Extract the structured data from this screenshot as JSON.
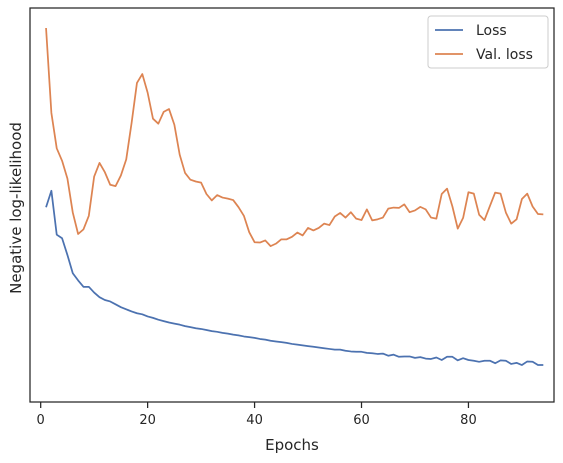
{
  "chart_data": {
    "type": "line",
    "xlabel": "Epochs",
    "ylabel": "Negative log-likelihood",
    "xlim": [
      -2,
      96
    ],
    "ylim": [
      0,
      100
    ],
    "x_ticks": [
      0,
      20,
      40,
      60,
      80
    ],
    "y_ticks_shown": false,
    "grid": false,
    "legend_placement": "top-right",
    "series": [
      {
        "name": "Loss",
        "color": "#4c72b0",
        "x": [
          1,
          2,
          3,
          4,
          5,
          6,
          7,
          8,
          9,
          10,
          11,
          12,
          13,
          14,
          15,
          16,
          17,
          18,
          19,
          20,
          21,
          22,
          23,
          24,
          25,
          26,
          27,
          28,
          29,
          30,
          31,
          32,
          33,
          34,
          35,
          36,
          37,
          38,
          39,
          40,
          41,
          42,
          43,
          44,
          45,
          46,
          47,
          48,
          49,
          50,
          51,
          52,
          53,
          54,
          55,
          56,
          57,
          58,
          59,
          60,
          61,
          62,
          63,
          64,
          65,
          66,
          67,
          68,
          69,
          70,
          71,
          72,
          73,
          74,
          75,
          76,
          77,
          78,
          79,
          80,
          81,
          82,
          83,
          84,
          85,
          86,
          87,
          88,
          89,
          90,
          91,
          92,
          93,
          94
        ],
        "y": [
          49.8,
          54.4,
          42.1,
          41.1,
          36.4,
          31.3,
          29.3,
          27.5,
          27.5,
          25.9,
          24.6,
          23.8,
          23.4,
          22.6,
          21.8,
          21.2,
          20.6,
          20.1,
          19.8,
          19.2,
          18.8,
          18.3,
          17.9,
          17.5,
          17.2,
          16.9,
          16.5,
          16.2,
          15.9,
          15.7,
          15.4,
          15.1,
          14.9,
          14.6,
          14.4,
          14.1,
          13.9,
          13.6,
          13.4,
          13.2,
          12.9,
          12.7,
          12.4,
          12.2,
          12.0,
          11.8,
          11.5,
          11.3,
          11.1,
          10.9,
          10.7,
          10.5,
          10.3,
          10.1,
          9.9,
          9.9,
          9.6,
          9.4,
          9.3,
          9.3,
          9.0,
          8.9,
          8.7,
          8.8,
          8.2,
          8.5,
          7.9,
          8.0,
          8.0,
          7.6,
          7.8,
          7.4,
          7.3,
          7.7,
          7.0,
          7.9,
          7.9,
          6.9,
          7.5,
          7.0,
          6.8,
          6.5,
          6.8,
          6.8,
          6.1,
          6.9,
          6.8,
          5.9,
          6.2,
          5.6,
          6.6,
          6.5,
          5.6,
          5.6
        ]
      },
      {
        "name": "Val. loss",
        "color": "#dd8452",
        "x": [
          1,
          2,
          3,
          4,
          5,
          6,
          7,
          8,
          9,
          10,
          11,
          12,
          13,
          14,
          15,
          16,
          17,
          18,
          19,
          20,
          21,
          22,
          23,
          24,
          25,
          26,
          27,
          28,
          29,
          30,
          31,
          32,
          33,
          34,
          35,
          36,
          37,
          38,
          39,
          40,
          41,
          42,
          43,
          44,
          45,
          46,
          47,
          48,
          49,
          50,
          51,
          52,
          53,
          54,
          55,
          56,
          57,
          58,
          59,
          60,
          61,
          62,
          63,
          64,
          65,
          66,
          67,
          68,
          69,
          70,
          71,
          72,
          73,
          74,
          75,
          76,
          77,
          78,
          79,
          80,
          81,
          82,
          83,
          84,
          85,
          86,
          87,
          88,
          89,
          90,
          91,
          92,
          93,
          94
        ],
        "y": [
          100,
          76.2,
          66.3,
          62.8,
          57.8,
          48.3,
          42.3,
          43.6,
          47.4,
          58.4,
          62.2,
          59.6,
          56.1,
          55.7,
          58.7,
          63.2,
          73.4,
          84.6,
          87.1,
          81.9,
          74.6,
          73.2,
          76.5,
          77.3,
          72.9,
          64.5,
          59.4,
          57.5,
          57.0,
          56.7,
          53.5,
          51.7,
          53.2,
          52.5,
          52.2,
          51.8,
          49.8,
          47.4,
          42.8,
          40.0,
          39.9,
          40.5,
          38.9,
          39.6,
          40.8,
          40.8,
          41.5,
          42.7,
          41.9,
          44.0,
          43.3,
          44.0,
          45.2,
          44.8,
          47.2,
          48.2,
          46.9,
          48.4,
          46.6,
          46.2,
          49.2,
          46.1,
          46.4,
          46.9,
          49.4,
          49.7,
          49.6,
          50.6,
          48.4,
          48.9,
          49.9,
          49.2,
          46.9,
          46.6,
          53.5,
          55.0,
          50.0,
          43.8,
          46.8,
          54.0,
          53.6,
          47.7,
          46.2,
          50.1,
          53.9,
          53.6,
          48.3,
          45.2,
          46.4,
          52.1,
          53.6,
          50.0,
          47.9,
          47.8
        ]
      }
    ]
  }
}
